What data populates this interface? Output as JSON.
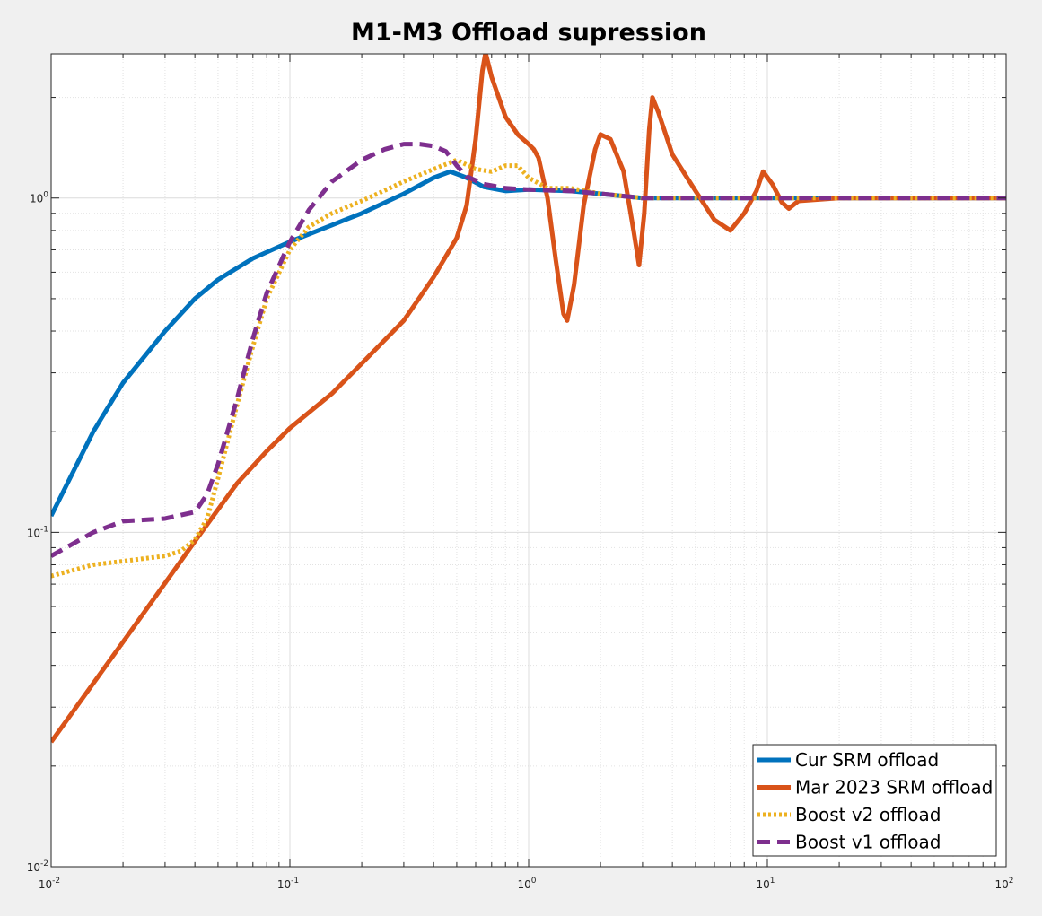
{
  "chart_data": {
    "type": "line",
    "title": "M1-M3 Offload supression",
    "xlabel": "",
    "ylabel": "",
    "xscale": "log",
    "yscale": "log",
    "xlim": [
      0.01,
      100
    ],
    "ylim": [
      0.01,
      2.7
    ],
    "grid": "on (major and minor)",
    "legend_location": "bottom-right",
    "x_ticks": [
      {
        "base": "10",
        "exp": "-2",
        "value": 0.01
      },
      {
        "base": "10",
        "exp": "-1",
        "value": 0.1
      },
      {
        "base": "10",
        "exp": "0",
        "value": 1
      },
      {
        "base": "10",
        "exp": "1",
        "value": 10
      },
      {
        "base": "10",
        "exp": "2",
        "value": 100
      }
    ],
    "y_ticks": [
      {
        "base": "10",
        "exp": "-2",
        "value": 0.01
      },
      {
        "base": "10",
        "exp": "-1",
        "value": 0.1
      },
      {
        "base": "10",
        "exp": "0",
        "value": 1
      }
    ],
    "series": [
      {
        "name": "Cur SRM offload",
        "color": "#0072BD",
        "style": "solid",
        "points": [
          [
            0.01,
            0.112
          ],
          [
            0.015,
            0.2
          ],
          [
            0.02,
            0.28
          ],
          [
            0.03,
            0.4
          ],
          [
            0.04,
            0.5
          ],
          [
            0.05,
            0.57
          ],
          [
            0.07,
            0.66
          ],
          [
            0.1,
            0.74
          ],
          [
            0.15,
            0.83
          ],
          [
            0.2,
            0.9
          ],
          [
            0.3,
            1.03
          ],
          [
            0.4,
            1.15
          ],
          [
            0.47,
            1.2
          ],
          [
            0.55,
            1.15
          ],
          [
            0.65,
            1.08
          ],
          [
            0.8,
            1.05
          ],
          [
            1.0,
            1.06
          ],
          [
            1.5,
            1.05
          ],
          [
            2.0,
            1.03
          ],
          [
            3.0,
            1.0
          ],
          [
            5.0,
            1.0
          ],
          [
            10,
            1.0
          ],
          [
            100,
            1.0
          ]
        ]
      },
      {
        "name": "Mar 2023 SRM offload",
        "color": "#D95319",
        "style": "solid",
        "points": [
          [
            0.01,
            0.0236
          ],
          [
            0.02,
            0.047
          ],
          [
            0.04,
            0.094
          ],
          [
            0.06,
            0.14
          ],
          [
            0.08,
            0.175
          ],
          [
            0.1,
            0.205
          ],
          [
            0.15,
            0.26
          ],
          [
            0.2,
            0.32
          ],
          [
            0.3,
            0.43
          ],
          [
            0.4,
            0.58
          ],
          [
            0.5,
            0.76
          ],
          [
            0.55,
            0.95
          ],
          [
            0.6,
            1.5
          ],
          [
            0.64,
            2.4
          ],
          [
            0.66,
            2.72
          ],
          [
            0.7,
            2.3
          ],
          [
            0.8,
            1.75
          ],
          [
            0.9,
            1.55
          ],
          [
            1.0,
            1.45
          ],
          [
            1.05,
            1.4
          ],
          [
            1.1,
            1.32
          ],
          [
            1.2,
            1.0
          ],
          [
            1.3,
            0.65
          ],
          [
            1.4,
            0.45
          ],
          [
            1.45,
            0.43
          ],
          [
            1.55,
            0.55
          ],
          [
            1.7,
            0.95
          ],
          [
            1.9,
            1.4
          ],
          [
            2.0,
            1.55
          ],
          [
            2.2,
            1.5
          ],
          [
            2.5,
            1.2
          ],
          [
            2.75,
            0.8
          ],
          [
            2.9,
            0.63
          ],
          [
            3.05,
            0.9
          ],
          [
            3.2,
            1.6
          ],
          [
            3.3,
            2.0
          ],
          [
            3.5,
            1.8
          ],
          [
            4.0,
            1.35
          ],
          [
            5.0,
            1.05
          ],
          [
            6.0,
            0.86
          ],
          [
            7.0,
            0.8
          ],
          [
            8.0,
            0.9
          ],
          [
            9.0,
            1.05
          ],
          [
            9.6,
            1.2
          ],
          [
            10.5,
            1.1
          ],
          [
            11.5,
            0.97
          ],
          [
            12.3,
            0.93
          ],
          [
            13.5,
            0.98
          ],
          [
            20,
            1.0
          ],
          [
            100,
            1.0
          ]
        ]
      },
      {
        "name": "Boost v2 offload",
        "color": "#EDB120",
        "style": "dotted",
        "points": [
          [
            0.01,
            0.074
          ],
          [
            0.015,
            0.08
          ],
          [
            0.02,
            0.082
          ],
          [
            0.03,
            0.085
          ],
          [
            0.035,
            0.088
          ],
          [
            0.04,
            0.095
          ],
          [
            0.045,
            0.11
          ],
          [
            0.05,
            0.145
          ],
          [
            0.06,
            0.24
          ],
          [
            0.07,
            0.36
          ],
          [
            0.08,
            0.5
          ],
          [
            0.1,
            0.7
          ],
          [
            0.12,
            0.82
          ],
          [
            0.15,
            0.9
          ],
          [
            0.2,
            0.98
          ],
          [
            0.3,
            1.12
          ],
          [
            0.4,
            1.22
          ],
          [
            0.5,
            1.3
          ],
          [
            0.6,
            1.22
          ],
          [
            0.7,
            1.2
          ],
          [
            0.8,
            1.25
          ],
          [
            0.9,
            1.25
          ],
          [
            1.0,
            1.15
          ],
          [
            1.2,
            1.07
          ],
          [
            1.5,
            1.07
          ],
          [
            2.0,
            1.03
          ],
          [
            3.0,
            1.0
          ],
          [
            100,
            1.0
          ]
        ]
      },
      {
        "name": "Boost v1 offload",
        "color": "#7E2F8E",
        "style": "dashed",
        "points": [
          [
            0.01,
            0.085
          ],
          [
            0.015,
            0.1
          ],
          [
            0.02,
            0.108
          ],
          [
            0.03,
            0.11
          ],
          [
            0.04,
            0.115
          ],
          [
            0.045,
            0.13
          ],
          [
            0.05,
            0.16
          ],
          [
            0.06,
            0.25
          ],
          [
            0.07,
            0.38
          ],
          [
            0.08,
            0.52
          ],
          [
            0.1,
            0.74
          ],
          [
            0.12,
            0.92
          ],
          [
            0.15,
            1.12
          ],
          [
            0.2,
            1.3
          ],
          [
            0.25,
            1.4
          ],
          [
            0.3,
            1.45
          ],
          [
            0.35,
            1.45
          ],
          [
            0.4,
            1.43
          ],
          [
            0.45,
            1.38
          ],
          [
            0.5,
            1.25
          ],
          [
            0.55,
            1.16
          ],
          [
            0.65,
            1.1
          ],
          [
            0.8,
            1.07
          ],
          [
            1.0,
            1.06
          ],
          [
            1.5,
            1.05
          ],
          [
            2.0,
            1.03
          ],
          [
            3.0,
            1.0
          ],
          [
            100,
            1.0
          ]
        ]
      }
    ]
  }
}
